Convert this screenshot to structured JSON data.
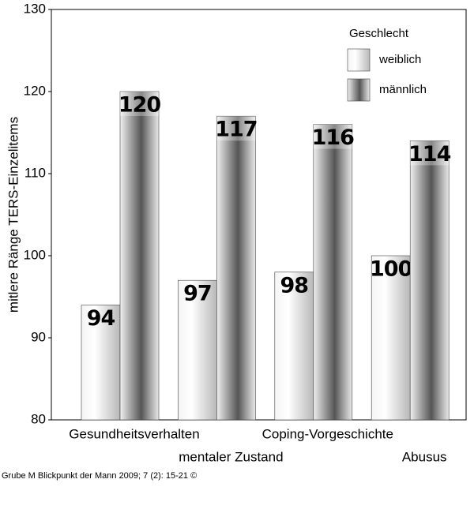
{
  "chart_data": {
    "type": "bar",
    "y_label": "mitlere Ränge TERS-Einzelitems",
    "categories": [
      "Gesundheitsverhalten",
      "mentaler Zustand",
      "Coping-Vorgeschichte",
      "Abusus"
    ],
    "series": [
      {
        "name": "weiblich",
        "color": "#b8b8b8",
        "values": [
          94,
          97,
          98,
          100
        ]
      },
      {
        "name": "männlich",
        "color": "#555555",
        "values": [
          120,
          117,
          116,
          114
        ]
      }
    ],
    "legend_title": "Geschlecht",
    "ylim": [
      80,
      130
    ],
    "yticks": [
      80,
      90,
      100,
      110,
      120,
      130
    ],
    "source": "Grube M Blickpunkt der Mann 2009; 7 (2): 15-21 ©"
  }
}
